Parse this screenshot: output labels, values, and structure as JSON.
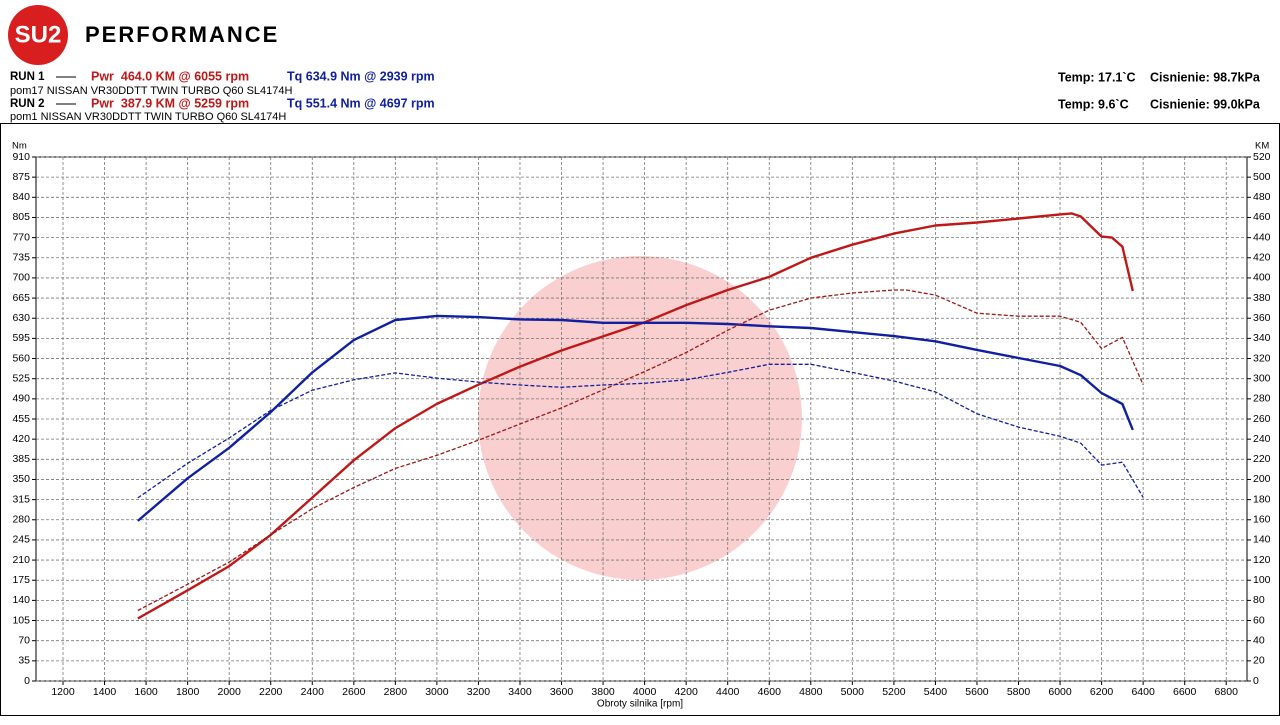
{
  "header": {
    "logo": "SU2",
    "brand": "PERFORMANCE",
    "runs": [
      {
        "label": "RUN 1",
        "power": "Pwr  464.0 KM @ 6055 rpm",
        "torque": "Tq 634.9 Nm @ 2939 rpm",
        "engine": "pom17 NISSAN VR30DDTT TWIN TURBO Q60 SL4174H",
        "temp": "Temp: 17.1`C",
        "pressure": "Cisnienie: 98.7kPa"
      },
      {
        "label": "RUN 2",
        "power": "Pwr  387.9 KM @ 5259 rpm",
        "torque": "Tq 551.4 Nm @ 4697 rpm",
        "engine": "pom1 NISSAN VR30DDTT TWIN TURBO Q60 SL4174H",
        "temp": "Temp: 9.6`C",
        "pressure": "Cisnienie: 99.0kPa"
      }
    ]
  },
  "chart_data": {
    "type": "line",
    "xlabel": "Obroty silnika [rpm]",
    "ylabel": "Nm",
    "y2label": "KM",
    "grid": true,
    "xlim": [
      1070,
      6900
    ],
    "ylim": [
      0,
      910
    ],
    "y2lim": [
      0,
      520
    ],
    "xticks": [
      1200,
      1400,
      1600,
      1800,
      2000,
      2200,
      2400,
      2600,
      2800,
      3000,
      3200,
      3400,
      3600,
      3800,
      4000,
      4200,
      4400,
      4600,
      4800,
      5000,
      5200,
      5400,
      5600,
      5800,
      6000,
      6200,
      6400,
      6600,
      6800
    ],
    "yticks": [
      0,
      35,
      70,
      105,
      140,
      175,
      210,
      245,
      280,
      315,
      350,
      385,
      420,
      455,
      490,
      525,
      560,
      595,
      630,
      665,
      700,
      735,
      770,
      805,
      840,
      875,
      910
    ],
    "y2ticks": [
      0,
      20,
      40,
      60,
      80,
      100,
      120,
      140,
      160,
      180,
      200,
      220,
      240,
      260,
      280,
      300,
      320,
      340,
      360,
      380,
      400,
      420,
      440,
      460,
      480,
      500,
      520
    ],
    "series": [
      {
        "color": "#c01818",
        "dash": false,
        "axis": "y2",
        "x": [
          1560,
          1800,
          2000,
          2200,
          2400,
          2600,
          2800,
          3000,
          3200,
          3400,
          3600,
          3800,
          4000,
          4200,
          4400,
          4600,
          4800,
          5000,
          5200,
          5400,
          5600,
          5800,
          6000,
          6055,
          6100,
          6200,
          6250,
          6300,
          6350
        ],
        "values": [
          62,
          90,
          114,
          145,
          182,
          219,
          251,
          275,
          294,
          312,
          328,
          342,
          356,
          373,
          388,
          401,
          420,
          433,
          444,
          452,
          455,
          459,
          463,
          464,
          461,
          441,
          440,
          431,
          387
        ]
      },
      {
        "color": "#1020a0",
        "dash": false,
        "axis": "y",
        "x": [
          1560,
          1800,
          2000,
          2200,
          2400,
          2600,
          2800,
          3000,
          3200,
          3400,
          3600,
          3800,
          4000,
          4200,
          4400,
          4600,
          4800,
          5000,
          5200,
          5400,
          5600,
          5800,
          6000,
          6100,
          6200,
          6300,
          6350
        ],
        "values": [
          278,
          352,
          405,
          467,
          536,
          592,
          627,
          634,
          632,
          628,
          627,
          622,
          622,
          622,
          620,
          616,
          613,
          606,
          599,
          590,
          575,
          561,
          547,
          531,
          500,
          481,
          436
        ]
      },
      {
        "color": "#a01818",
        "dash": true,
        "axis": "y2",
        "x": [
          1560,
          1800,
          2000,
          2200,
          2400,
          2600,
          2800,
          3000,
          3200,
          3400,
          3600,
          3800,
          4000,
          4200,
          4400,
          4600,
          4800,
          5000,
          5200,
          5259,
          5400,
          5600,
          5800,
          6000,
          6100,
          6200,
          6300,
          6400
        ],
        "values": [
          70,
          96,
          118,
          145,
          171,
          192,
          211,
          224,
          239,
          255,
          271,
          289,
          307,
          326,
          348,
          368,
          380,
          385,
          388,
          388,
          383,
          365,
          362,
          362,
          356,
          330,
          341,
          294
        ]
      },
      {
        "color": "#1020a0",
        "dash": true,
        "axis": "y",
        "x": [
          1560,
          1800,
          2000,
          2200,
          2400,
          2600,
          2800,
          3000,
          3200,
          3400,
          3600,
          3800,
          4000,
          4200,
          4400,
          4600,
          4800,
          5000,
          5200,
          5400,
          5600,
          5800,
          6000,
          6100,
          6200,
          6300,
          6400
        ],
        "values": [
          318,
          378,
          422,
          470,
          505,
          523,
          535,
          526,
          519,
          514,
          510,
          514,
          517,
          523,
          536,
          550,
          550,
          536,
          521,
          502,
          464,
          441,
          425,
          413,
          375,
          380,
          319
        ]
      }
    ]
  }
}
